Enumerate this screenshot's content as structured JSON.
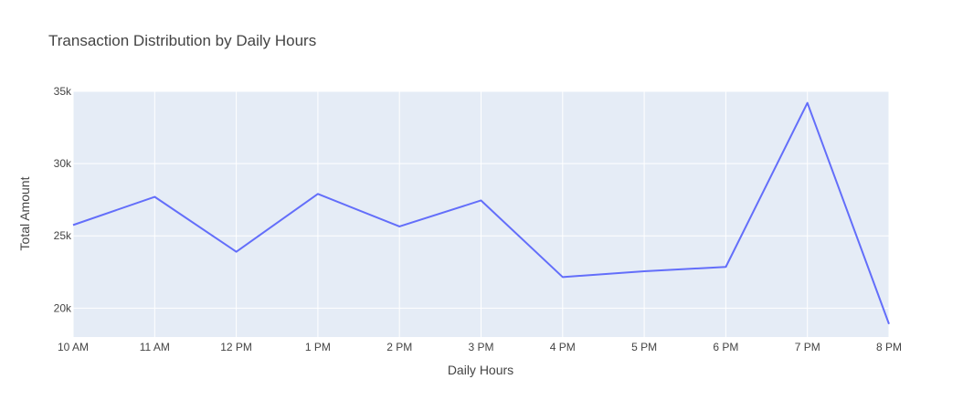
{
  "chart_data": {
    "type": "line",
    "title": "Transaction Distribution by Daily Hours",
    "xlabel": "Daily Hours",
    "ylabel": "Total Amount",
    "categories": [
      "10 AM",
      "11 AM",
      "12 PM",
      "1 PM",
      "2 PM",
      "3 PM",
      "4 PM",
      "5 PM",
      "6 PM",
      "7 PM",
      "8 PM"
    ],
    "values": [
      25750,
      27700,
      23900,
      27900,
      25650,
      27450,
      22150,
      22550,
      22850,
      34200,
      18900
    ],
    "ylim": [
      18000,
      35000
    ],
    "yticks": [
      20000,
      25000,
      30000,
      35000
    ],
    "ytick_labels": [
      "20k",
      "25k",
      "30k",
      "35k"
    ],
    "grid": true,
    "colors": {
      "line": "#636efa",
      "plot_bg": "#e5ecf6",
      "grid": "#ffffff",
      "text": "#444444"
    }
  }
}
